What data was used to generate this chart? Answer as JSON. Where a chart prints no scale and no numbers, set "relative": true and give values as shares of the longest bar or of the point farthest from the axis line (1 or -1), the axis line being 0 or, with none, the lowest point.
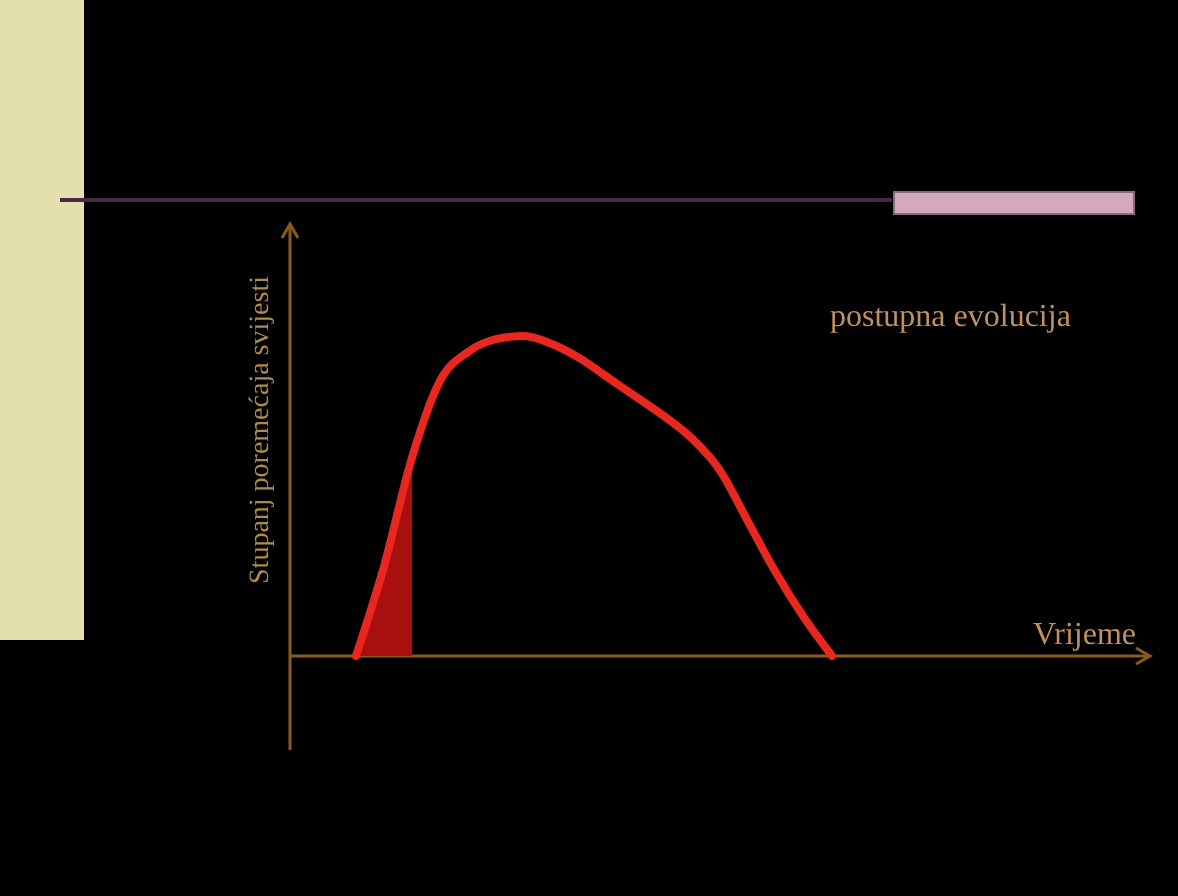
{
  "chart_data": {
    "type": "line",
    "relative": true,
    "ylabel": "Stupanj poremećaja svijesti",
    "annotations": [
      "postupna evolucija",
      "Vrijeme"
    ],
    "categories": [
      null,
      null,
      null,
      null,
      null,
      null,
      null,
      null,
      null,
      null,
      null,
      null,
      null,
      null,
      null,
      null,
      null,
      null
    ],
    "series": [
      {
        "color": "#e8281e",
        "values": [
          0,
          0.28,
          0.62,
          0.86,
          0.95,
          0.99,
          1,
          0.975,
          0.93,
          0.87,
          0.81,
          0.75,
          0.68,
          0.58,
          0.42,
          0.26,
          0.12,
          0
        ]
      },
      {
        "type": "area",
        "color": "#a81010",
        "values": [
          0,
          0.28,
          0.6,
          null,
          null,
          null,
          null,
          null,
          null,
          null,
          null,
          null,
          null,
          null,
          null,
          null,
          null,
          null
        ]
      }
    ],
    "marker": "none",
    "line_style": "solid",
    "grid": false
  }
}
